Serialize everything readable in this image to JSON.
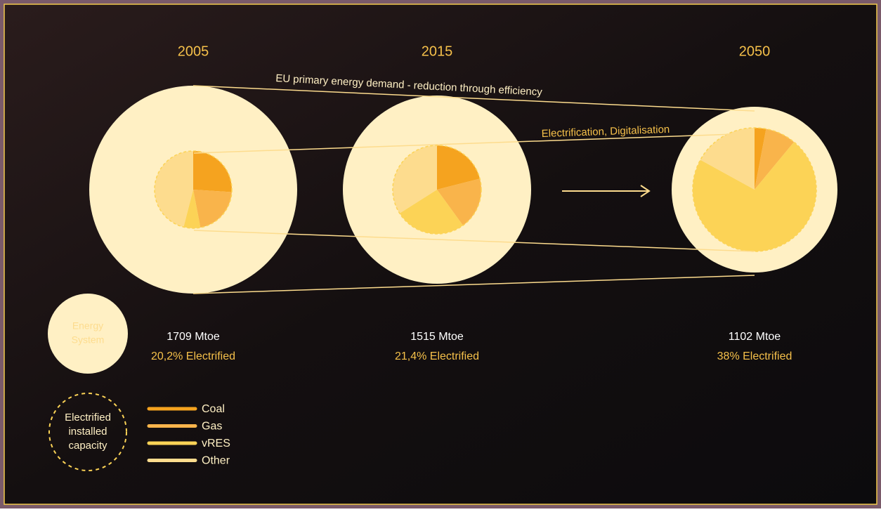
{
  "chart_data": [
    {
      "type": "pie",
      "title": "2005",
      "total": "1709 Mtoe",
      "electrified": "20,2% Electrified",
      "values": [
        26,
        21,
        7,
        46
      ]
    },
    {
      "type": "pie",
      "title": "2015",
      "total": "1515 Mtoe",
      "electrified": "21,4% Electrified",
      "values": [
        21,
        19,
        26,
        34
      ]
    },
    {
      "type": "pie",
      "title": "2050",
      "total": "1102 Mtoe",
      "electrified": "38% Electrified",
      "values": [
        3,
        8,
        72,
        17
      ]
    }
  ],
  "legend": {
    "energy_system": [
      "Energy",
      "System"
    ],
    "electrified": [
      "Electrified",
      "installed",
      "capacity"
    ],
    "items": [
      {
        "name": "Coal",
        "color": "#f5a31f"
      },
      {
        "name": "Gas",
        "color": "#f9b44b"
      },
      {
        "name": "vRES",
        "color": "#fcd356"
      },
      {
        "name": "Other",
        "color": "#fddc8e"
      }
    ]
  },
  "annotations": {
    "efficiency": "EU primary energy demand - reduction through efficiency",
    "electrification": "Electrification, Digitalisation"
  }
}
